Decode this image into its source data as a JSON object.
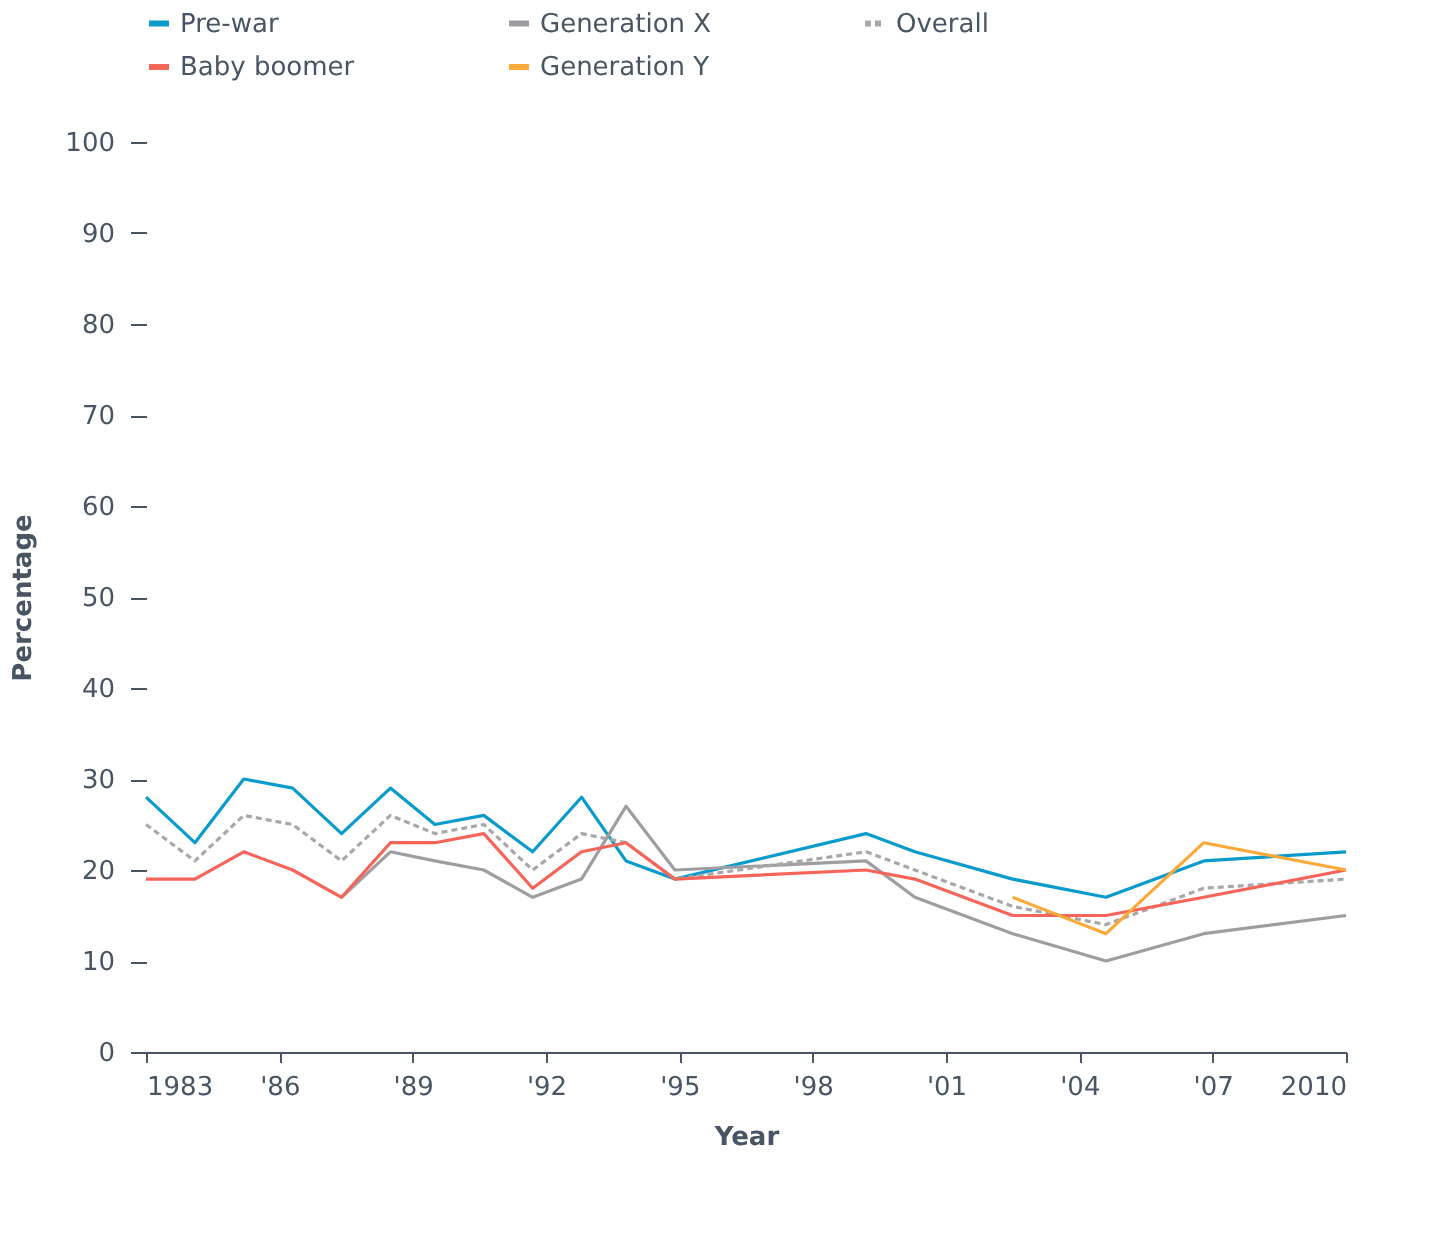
{
  "chart_data": {
    "type": "line",
    "xlabel": "Year",
    "ylabel": "Percentage",
    "x": [
      1983,
      1984.1,
      1985.2,
      1986.3,
      1987.4,
      1988.5,
      1989.5,
      1990.6,
      1991.7,
      1992.8,
      1993.8,
      1994.9,
      1999.2,
      2000.3,
      2002.5,
      2004.6,
      2006.8,
      2010
    ],
    "series": [
      {
        "name": "Pre-war",
        "color": "#0a9bcd",
        "values": [
          28,
          23,
          30,
          29,
          24,
          29,
          25,
          26,
          22,
          28,
          21,
          19,
          24,
          22,
          19,
          17,
          21,
          22
        ]
      },
      {
        "name": "Generation X",
        "color": "#9e9ea2",
        "values": [
          null,
          null,
          null,
          null,
          17,
          22,
          21,
          20,
          17,
          19,
          27,
          20,
          21,
          17,
          13,
          10,
          13,
          15
        ]
      },
      {
        "name": "Overall",
        "color": "#a8a8a8",
        "line_style": "dashed",
        "values": [
          25,
          21,
          26,
          25,
          21,
          26,
          24,
          25,
          20,
          24,
          23,
          19,
          22,
          20,
          16,
          14,
          18,
          19
        ]
      },
      {
        "name": "Baby boomer",
        "color": "#f7645a",
        "values": [
          19,
          19,
          22,
          20,
          17,
          23,
          23,
          24,
          18,
          22,
          23,
          19,
          20,
          19,
          15,
          15,
          17,
          20
        ]
      },
      {
        "name": "Generation Y",
        "color": "#fbaa3a",
        "values": [
          null,
          null,
          null,
          null,
          null,
          null,
          null,
          null,
          null,
          null,
          null,
          null,
          null,
          null,
          17,
          13,
          23,
          20
        ]
      }
    ],
    "xlim": [
      1983,
      2010
    ],
    "xticks": [
      {
        "value": 1983,
        "label": "1983"
      },
      {
        "value": 1986,
        "label": "'86"
      },
      {
        "value": 1989,
        "label": "'89"
      },
      {
        "value": 1992,
        "label": "'92"
      },
      {
        "value": 1995,
        "label": "'95"
      },
      {
        "value": 1998,
        "label": "'98"
      },
      {
        "value": 2001,
        "label": "'01"
      },
      {
        "value": 2004,
        "label": "'04"
      },
      {
        "value": 2007,
        "label": "'07"
      },
      {
        "value": 2010,
        "label": "2010"
      }
    ],
    "ylim": [
      0,
      100
    ],
    "yticks": [
      0,
      10,
      20,
      30,
      40,
      50,
      60,
      70,
      80,
      90,
      100
    ],
    "legend": "top",
    "grid": false,
    "marker": "none",
    "line_style": "solid"
  }
}
